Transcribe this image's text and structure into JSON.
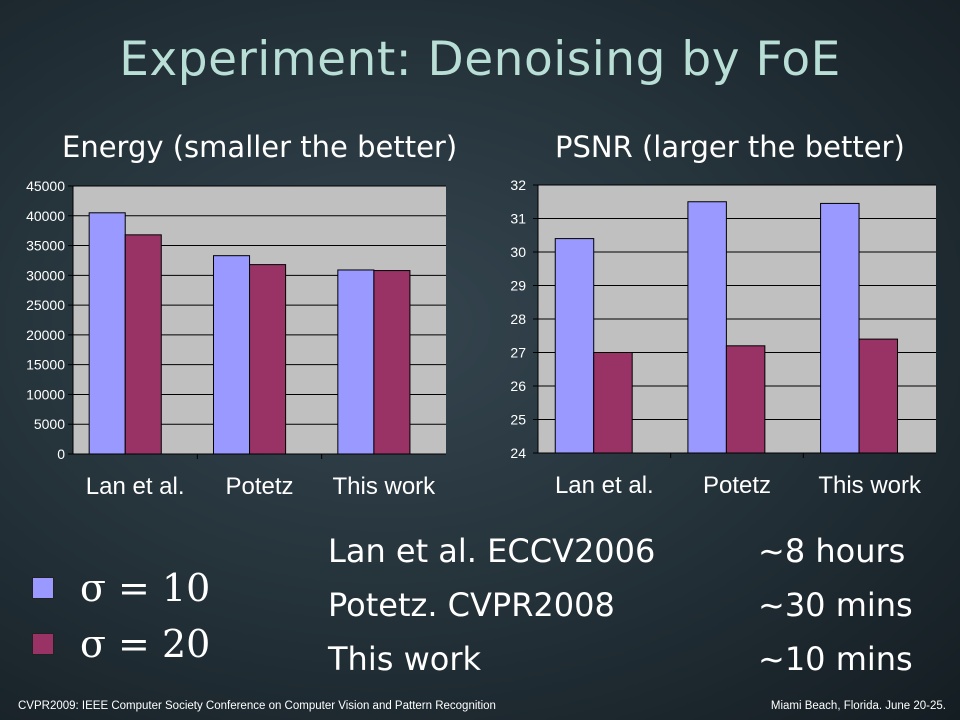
{
  "slide": {
    "title": "Experiment: Denoising by FoE",
    "footer_left": "CVPR2009: IEEE Computer Society Conference on Computer Vision and Pattern Recognition",
    "footer_right": "Miami Beach, Florida. June 20-25."
  },
  "legend": [
    {
      "label": "σ = 10",
      "color": "#9999ff"
    },
    {
      "label": "σ = 20",
      "color": "#993366"
    }
  ],
  "runtimes": [
    {
      "method": "Lan et al. ECCV2006",
      "time": "~8 hours"
    },
    {
      "method": "Potetz. CVPR2008",
      "time": "~30 mins"
    },
    {
      "method": "This work",
      "time": "~10 mins"
    }
  ],
  "chart_data": [
    {
      "type": "bar",
      "title": "Energy (smaller the better)",
      "categories": [
        "Lan et al.",
        "Potetz",
        "This work"
      ],
      "series": [
        {
          "values": [
            40500,
            33300,
            30900
          ],
          "color": "#9999ff"
        },
        {
          "values": [
            36800,
            31800,
            30800
          ],
          "color": "#993366"
        }
      ],
      "ylim": [
        0,
        45000
      ],
      "yticks": [
        0,
        5000,
        10000,
        15000,
        20000,
        25000,
        30000,
        35000,
        40000,
        45000
      ],
      "grid": true,
      "legend": "none"
    },
    {
      "type": "bar",
      "title": "PSNR (larger the better)",
      "categories": [
        "Lan et al.",
        "Potetz",
        "This work"
      ],
      "series": [
        {
          "values": [
            30.4,
            31.5,
            31.45
          ],
          "color": "#9999ff"
        },
        {
          "values": [
            27.0,
            27.2,
            27.4
          ],
          "color": "#993366"
        }
      ],
      "ylim": [
        24,
        32
      ],
      "yticks": [
        24,
        25,
        26,
        27,
        28,
        29,
        30,
        31,
        32
      ],
      "grid": true,
      "legend": "none"
    }
  ]
}
